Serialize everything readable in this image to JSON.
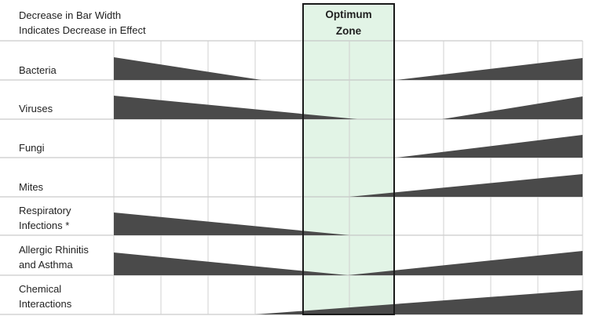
{
  "header": {
    "line1": "Decrease in Bar Width",
    "line2": "Indicates Decrease in Effect"
  },
  "zone": {
    "line1": "Optimum",
    "line2": "Zone",
    "fill_color": "#e2f4e6",
    "border_color": "#1a1a1a"
  },
  "bar_color": "#4a4a4a",
  "rows": [
    {
      "label_lines": [
        "Bacteria"
      ]
    },
    {
      "label_lines": [
        "Viruses"
      ]
    },
    {
      "label_lines": [
        "Fungi"
      ]
    },
    {
      "label_lines": [
        "Mites"
      ]
    },
    {
      "label_lines": [
        "Respiratory",
        "Infections *"
      ]
    },
    {
      "label_lines": [
        "Allergic Rhinitis",
        "and Asthma"
      ]
    },
    {
      "label_lines": [
        "Chemical",
        "Interactions"
      ]
    }
  ]
}
